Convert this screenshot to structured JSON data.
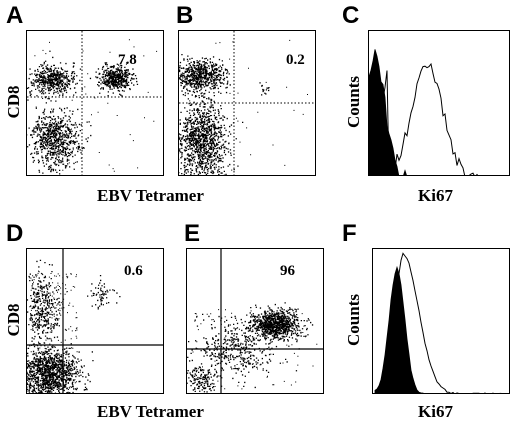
{
  "panels": {
    "A": {
      "label": "A",
      "percent": "7.8"
    },
    "B": {
      "label": "B",
      "percent": "0.2"
    },
    "C": {
      "label": "C"
    },
    "D": {
      "label": "D",
      "percent": "0.6"
    },
    "E": {
      "label": "E",
      "percent": "96"
    },
    "F": {
      "label": "F"
    }
  },
  "axes": {
    "cd8": "CD8",
    "tetramer": "EBV Tetramer",
    "counts": "Counts",
    "ki67": "Ki67"
  },
  "colors": {
    "ink": "#000000",
    "background": "#ffffff"
  }
}
